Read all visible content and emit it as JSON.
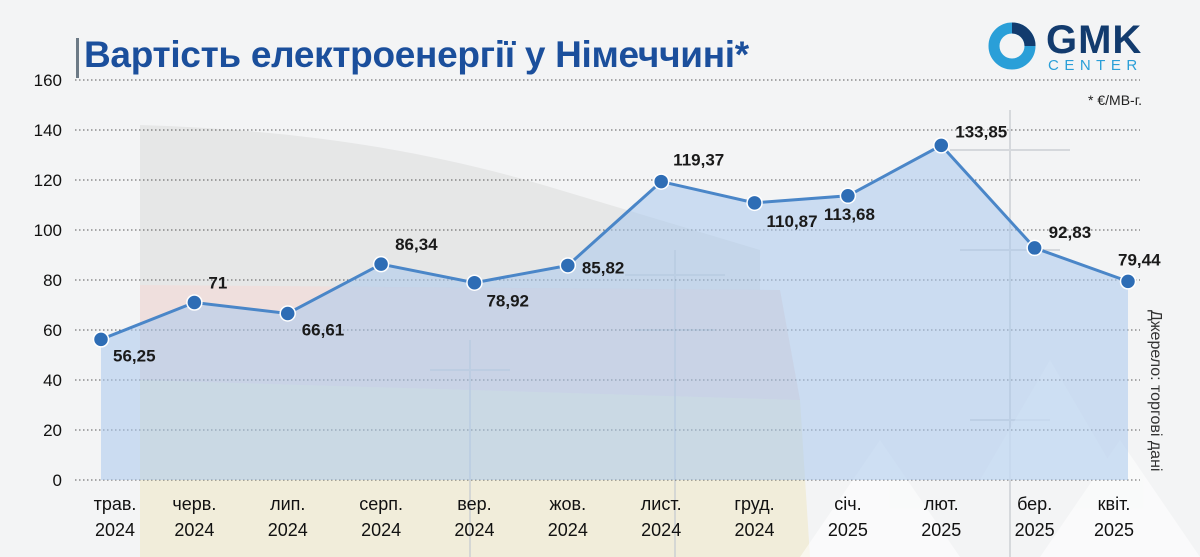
{
  "header": {
    "title": "Вартість електроенергії у Німеччині*",
    "unit_note": "* €/МВ-г.",
    "source": "Джерело: торгові дані"
  },
  "logo": {
    "word": "GMK",
    "sub": "CENTER"
  },
  "colors": {
    "title": "#1b4f9c",
    "line": "#4a86c8",
    "point": "#2e6db5",
    "area": "#a9c9ec",
    "logo_dark": "#123b6e",
    "logo_accent": "#2a9fd8"
  },
  "chart_data": {
    "type": "area",
    "title": "Вартість електроенергії у Німеччині*",
    "ylim": [
      0,
      160
    ],
    "y_ticks": [
      0,
      20,
      40,
      60,
      80,
      100,
      120,
      140,
      160
    ],
    "grid": true,
    "categories": [
      [
        "трав.",
        "2024"
      ],
      [
        "черв.",
        "2024"
      ],
      [
        "лип.",
        "2024"
      ],
      [
        "серп.",
        "2024"
      ],
      [
        "вер.",
        "2024"
      ],
      [
        "жов.",
        "2024"
      ],
      [
        "лист.",
        "2024"
      ],
      [
        "груд.",
        "2024"
      ],
      [
        "січ.",
        "2025"
      ],
      [
        "лют.",
        "2025"
      ],
      [
        "бер.",
        "2025"
      ],
      [
        "квіт.",
        "2025"
      ]
    ],
    "values": [
      56.25,
      71,
      66.61,
      86.34,
      78.92,
      85.82,
      119.37,
      110.87,
      113.68,
      133.85,
      92.83,
      79.44
    ],
    "data_labels": [
      "56,25",
      "71",
      "66,61",
      "86,34",
      "78,92",
      "85,82",
      "119,37",
      "110,87",
      "113,68",
      "133,85",
      "92,83",
      "79,44"
    ]
  }
}
